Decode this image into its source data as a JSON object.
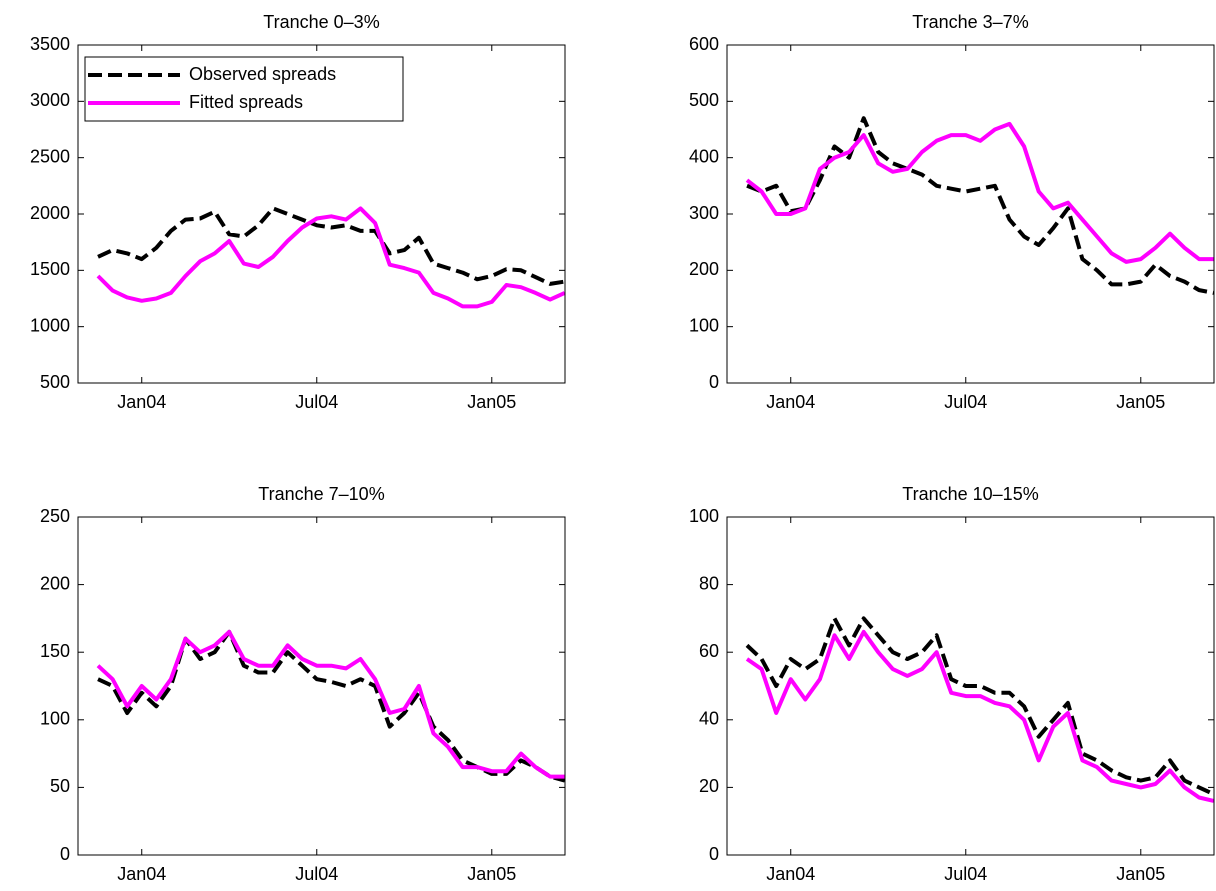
{
  "chart_data": [
    {
      "type": "line",
      "title": "Tranche 0–3%",
      "categories": [
        null,
        null,
        null,
        "Jan04",
        null,
        null,
        null,
        null,
        null,
        null,
        null,
        null,
        null,
        null,
        null,
        "Jul04",
        null,
        null,
        null,
        null,
        null,
        null,
        null,
        null,
        null,
        null,
        null,
        "Jan05",
        null,
        null,
        null,
        null,
        null
      ],
      "ylim": [
        500,
        3500
      ],
      "yticks": [
        500,
        1000,
        1500,
        2000,
        2500,
        3000,
        3500
      ],
      "legend": "upper left",
      "series": [
        {
          "name": "Observed spreads",
          "color": "#000000",
          "dash": true,
          "values": [
            1620,
            1680,
            1650,
            1600,
            1700,
            1850,
            1950,
            1960,
            2020,
            1820,
            1800,
            1900,
            2050,
            2000,
            1950,
            1900,
            1880,
            1900,
            1850,
            1850,
            1650,
            1680,
            1790,
            1560,
            1520,
            1480,
            1420,
            1450,
            1510,
            1500,
            1440,
            1380,
            1400
          ]
        },
        {
          "name": "Fitted spreads",
          "color": "#ff00ff",
          "dash": false,
          "values": [
            1450,
            1320,
            1260,
            1230,
            1250,
            1300,
            1450,
            1580,
            1650,
            1760,
            1560,
            1530,
            1620,
            1760,
            1880,
            1960,
            1980,
            1950,
            2050,
            1920,
            1550,
            1520,
            1480,
            1300,
            1250,
            1180,
            1180,
            1220,
            1370,
            1350,
            1300,
            1240,
            1300
          ]
        }
      ]
    },
    {
      "type": "line",
      "title": "Tranche 3–7%",
      "categories": [
        null,
        null,
        null,
        "Jan04",
        null,
        null,
        null,
        null,
        null,
        null,
        null,
        null,
        null,
        null,
        null,
        "Jul04",
        null,
        null,
        null,
        null,
        null,
        null,
        null,
        null,
        null,
        null,
        null,
        "Jan05",
        null,
        null,
        null,
        null,
        null
      ],
      "ylim": [
        0,
        600
      ],
      "yticks": [
        0,
        100,
        200,
        300,
        400,
        500,
        600
      ],
      "series": [
        {
          "color": "#000000",
          "dash": true,
          "values": [
            350,
            340,
            350,
            305,
            310,
            360,
            420,
            400,
            470,
            410,
            390,
            380,
            370,
            350,
            345,
            340,
            345,
            350,
            290,
            260,
            245,
            275,
            310,
            220,
            200,
            175,
            175,
            180,
            210,
            190,
            180,
            165,
            160
          ]
        },
        {
          "color": "#ff00ff",
          "dash": false,
          "values": [
            360,
            340,
            300,
            300,
            310,
            380,
            400,
            410,
            440,
            390,
            375,
            380,
            410,
            430,
            440,
            440,
            430,
            450,
            460,
            420,
            340,
            310,
            320,
            290,
            260,
            230,
            215,
            220,
            240,
            265,
            240,
            220,
            220
          ]
        }
      ]
    },
    {
      "type": "line",
      "title": "Tranche 7–10%",
      "categories": [
        null,
        null,
        null,
        "Jan04",
        null,
        null,
        null,
        null,
        null,
        null,
        null,
        null,
        null,
        null,
        null,
        "Jul04",
        null,
        null,
        null,
        null,
        null,
        null,
        null,
        null,
        null,
        null,
        null,
        "Jan05",
        null,
        null,
        null,
        null,
        null
      ],
      "ylim": [
        0,
        250
      ],
      "yticks": [
        0,
        50,
        100,
        150,
        200,
        250
      ],
      "series": [
        {
          "color": "#000000",
          "dash": true,
          "values": [
            130,
            125,
            105,
            120,
            110,
            125,
            160,
            145,
            150,
            165,
            140,
            135,
            135,
            150,
            140,
            130,
            128,
            125,
            130,
            125,
            95,
            105,
            120,
            95,
            85,
            70,
            65,
            60,
            60,
            70,
            65,
            58,
            55
          ]
        },
        {
          "color": "#ff00ff",
          "dash": false,
          "values": [
            140,
            130,
            110,
            125,
            115,
            130,
            160,
            150,
            155,
            165,
            145,
            140,
            140,
            155,
            145,
            140,
            140,
            138,
            145,
            130,
            105,
            108,
            125,
            90,
            80,
            65,
            65,
            62,
            62,
            75,
            65,
            58,
            58
          ]
        }
      ]
    },
    {
      "type": "line",
      "title": "Tranche 10–15%",
      "categories": [
        null,
        null,
        null,
        "Jan04",
        null,
        null,
        null,
        null,
        null,
        null,
        null,
        null,
        null,
        null,
        null,
        "Jul04",
        null,
        null,
        null,
        null,
        null,
        null,
        null,
        null,
        null,
        null,
        null,
        "Jan05",
        null,
        null,
        null,
        null,
        null
      ],
      "ylim": [
        0,
        100
      ],
      "yticks": [
        0,
        20,
        40,
        60,
        80,
        100
      ],
      "series": [
        {
          "color": "#000000",
          "dash": true,
          "values": [
            62,
            58,
            50,
            58,
            55,
            58,
            70,
            62,
            70,
            65,
            60,
            58,
            60,
            65,
            52,
            50,
            50,
            48,
            48,
            44,
            35,
            40,
            45,
            30,
            28,
            25,
            23,
            22,
            23,
            28,
            22,
            20,
            18
          ]
        },
        {
          "color": "#ff00ff",
          "dash": false,
          "values": [
            58,
            55,
            42,
            52,
            46,
            52,
            65,
            58,
            66,
            60,
            55,
            53,
            55,
            60,
            48,
            47,
            47,
            45,
            44,
            40,
            28,
            38,
            42,
            28,
            26,
            22,
            21,
            20,
            21,
            25,
            20,
            17,
            16
          ]
        }
      ]
    }
  ]
}
